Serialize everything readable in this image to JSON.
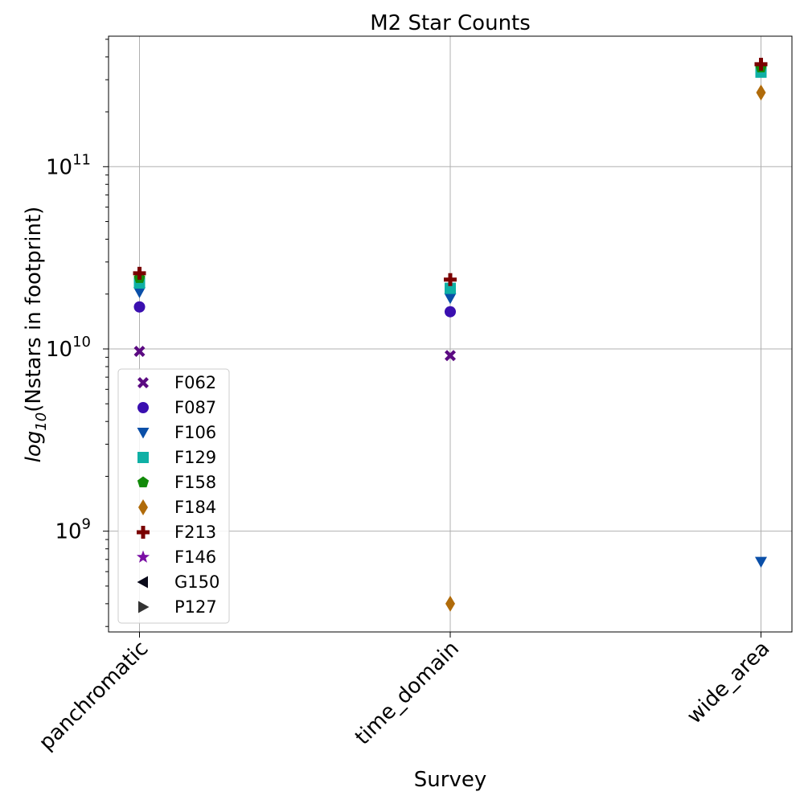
{
  "chart_data": {
    "type": "scatter",
    "title": "M2 Star Counts",
    "xlabel": "Survey",
    "ylabel": "log10(Nstars in footprint)",
    "ylabel_parts": {
      "pre": "log",
      "sub": "10",
      "post": "(Nstars in footprint)"
    },
    "categories": [
      "panchromatic",
      "time_domain",
      "wide_area"
    ],
    "yscale": "log",
    "ylim": [
      280000000,
      520000000000
    ],
    "yticks": [
      {
        "value": 1000000000,
        "base": "10",
        "exp": "9"
      },
      {
        "value": 10000000000,
        "base": "10",
        "exp": "10"
      },
      {
        "value": 100000000000,
        "base": "10",
        "exp": "11"
      }
    ],
    "grid": true,
    "legend_position": "lower-left",
    "series": [
      {
        "name": "F062",
        "marker": "X",
        "color": "#5b0a82",
        "values": [
          9700000000,
          9200000000,
          null
        ]
      },
      {
        "name": "F087",
        "marker": "circle",
        "color": "#3a0fb0",
        "values": [
          17000000000,
          16000000000,
          null
        ]
      },
      {
        "name": "F106",
        "marker": "triangle-down",
        "color": "#0a4fa8",
        "values": [
          20500000000,
          19000000000,
          680000000
        ]
      },
      {
        "name": "F129",
        "marker": "square",
        "color": "#0fb0a5",
        "values": [
          23000000000,
          21500000000,
          330000000000
        ]
      },
      {
        "name": "F158",
        "marker": "pentagon",
        "color": "#128a0a",
        "values": [
          24500000000,
          null,
          350000000000
        ]
      },
      {
        "name": "F184",
        "marker": "diamond",
        "color": "#b06b0a",
        "values": [
          null,
          400000000,
          255000000000
        ]
      },
      {
        "name": "F213",
        "marker": "plus",
        "color": "#7a0000",
        "values": [
          26000000000,
          24000000000,
          365000000000
        ]
      },
      {
        "name": "F146",
        "marker": "star",
        "color": "#7a0fa5",
        "values": [
          null,
          null,
          null
        ]
      },
      {
        "name": "G150",
        "marker": "triangle-left",
        "color": "#0a0a1a",
        "values": [
          null,
          null,
          null
        ]
      },
      {
        "name": "P127",
        "marker": "triangle-right",
        "color": "#333333",
        "values": [
          null,
          null,
          null
        ]
      }
    ]
  }
}
